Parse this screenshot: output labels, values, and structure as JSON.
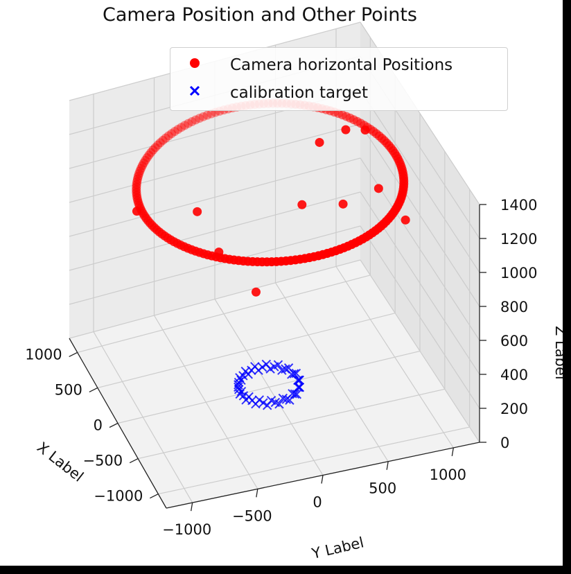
{
  "chart_data": {
    "type": "scatter",
    "projection": "3d",
    "title": "Camera Position and Other Points",
    "xlabel": "X Label",
    "ylabel": "Y Label",
    "zlabel": "Z Label",
    "grid": true,
    "legend_position": "top-right",
    "xlim": [
      -1200,
      1200
    ],
    "ylim": [
      -1200,
      1200
    ],
    "zlim": [
      0,
      1400
    ],
    "xticks": [
      "−1000",
      "−500",
      "0",
      "500",
      "1000"
    ],
    "yticks": [
      "−1000",
      "−500",
      "0",
      "500",
      "1000"
    ],
    "zticks": [
      "0",
      "200",
      "400",
      "600",
      "800",
      "1000",
      "1200",
      "1400"
    ],
    "series": [
      {
        "name": "Camera horizontal Positions",
        "marker": "circle",
        "color": "#ff0000",
        "ring": {
          "center_x": 0,
          "center_y": 0,
          "radius": 1000,
          "z": 1200,
          "count": 180
        },
        "extra_points": [
          {
            "x": -60,
            "y": 380,
            "z": 1400
          },
          {
            "x": 560,
            "y": 100,
            "z": 300
          },
          {
            "x": 700,
            "y": 880,
            "z": 1050
          },
          {
            "x": 350,
            "y": 900,
            "z": 1200
          },
          {
            "x": -560,
            "y": 660,
            "z": 1300
          },
          {
            "x": 150,
            "y": -1000,
            "z": 1150
          },
          {
            "x": -900,
            "y": -700,
            "z": 1300
          },
          {
            "x": -650,
            "y": 30,
            "z": 1350
          },
          {
            "x": -650,
            "y": 350,
            "z": 1300
          },
          {
            "x": -800,
            "y": 780,
            "z": 1200
          },
          {
            "x": -240,
            "y": -650,
            "z": 1250
          }
        ]
      },
      {
        "name": "calibration target",
        "marker": "x",
        "color": "#0000ff",
        "ring": {
          "center_x": 0,
          "center_y": 0,
          "radius": 230,
          "z": 0,
          "count": 48
        }
      }
    ]
  }
}
